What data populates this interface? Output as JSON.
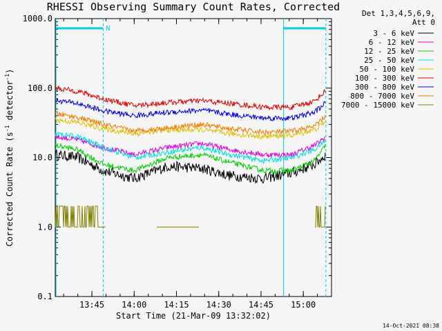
{
  "chart_data": {
    "type": "line",
    "title": "RHESSI Observing Summary Count Rates, Corrected",
    "xlabel": "Start Time (21-Mar-09 13:32:02)",
    "ylabel": "Corrected Count Rate (s⁻¹ detector⁻¹)",
    "ylabel_main": "Corrected Count Rate (s",
    "ylabel_mid": " detector",
    "ylabel_end": ")",
    "ylabel_sup": "-1",
    "yscale": "log",
    "ylim": [
      0.1,
      1000
    ],
    "xlim": [
      "13:32",
      "15:10"
    ],
    "y_ticks": [
      "1000.0",
      "100.0",
      "10.0",
      "1.0",
      "0.1"
    ],
    "x_ticks": [
      "13:45",
      "14:00",
      "14:15",
      "14:30",
      "14:45",
      "15:00"
    ],
    "detector_info": [
      "Det 1,3,4,5,6,9,",
      "Att 0"
    ],
    "flag_label": "N",
    "night_markers": [
      "13:32",
      "13:49",
      "14:53",
      "15:08"
    ],
    "series": [
      {
        "name": "3 - 6 keV",
        "color": "#000000",
        "keypoints": [
          [
            "13:32",
            11
          ],
          [
            "13:40",
            10
          ],
          [
            "13:49",
            6.5
          ],
          [
            "14:00",
            5
          ],
          [
            "14:12",
            7.5
          ],
          [
            "14:24",
            7
          ],
          [
            "14:34",
            5.5
          ],
          [
            "14:46",
            5
          ],
          [
            "14:56",
            6
          ],
          [
            "15:04",
            8
          ],
          [
            "15:08",
            11
          ]
        ]
      },
      {
        "name": "6 - 12 keV",
        "color": "#e000e0",
        "keypoints": [
          [
            "13:32",
            20
          ],
          [
            "13:40",
            18
          ],
          [
            "13:49",
            14
          ],
          [
            "14:00",
            11
          ],
          [
            "14:12",
            14
          ],
          [
            "14:24",
            16
          ],
          [
            "14:34",
            13
          ],
          [
            "14:46",
            11
          ],
          [
            "14:56",
            11
          ],
          [
            "15:04",
            15
          ],
          [
            "15:08",
            20
          ]
        ]
      },
      {
        "name": "12 - 25 keV",
        "color": "#00d000",
        "keypoints": [
          [
            "13:32",
            15
          ],
          [
            "13:40",
            13
          ],
          [
            "13:49",
            8
          ],
          [
            "14:00",
            6.5
          ],
          [
            "14:12",
            10
          ],
          [
            "14:24",
            11
          ],
          [
            "14:34",
            8.5
          ],
          [
            "14:46",
            6.5
          ],
          [
            "14:56",
            6.5
          ],
          [
            "15:04",
            9
          ],
          [
            "15:08",
            15
          ]
        ]
      },
      {
        "name": "25 - 50 keV",
        "color": "#00e0e0",
        "keypoints": [
          [
            "13:32",
            22
          ],
          [
            "13:40",
            20
          ],
          [
            "13:49",
            14
          ],
          [
            "14:00",
            10
          ],
          [
            "14:12",
            12
          ],
          [
            "14:24",
            14
          ],
          [
            "14:34",
            11
          ],
          [
            "14:46",
            9
          ],
          [
            "14:56",
            10
          ],
          [
            "15:04",
            13
          ],
          [
            "15:08",
            18
          ]
        ]
      },
      {
        "name": "50 - 100 keV",
        "color": "#e0c000",
        "keypoints": [
          [
            "13:32",
            35
          ],
          [
            "13:40",
            32
          ],
          [
            "13:49",
            26
          ],
          [
            "14:00",
            22
          ],
          [
            "14:12",
            25
          ],
          [
            "14:24",
            25
          ],
          [
            "14:34",
            22
          ],
          [
            "14:46",
            20
          ],
          [
            "14:56",
            21
          ],
          [
            "15:04",
            25
          ],
          [
            "15:08",
            33
          ]
        ]
      },
      {
        "name": "100 - 300 keV",
        "color": "#e00000",
        "keypoints": [
          [
            "13:32",
            100
          ],
          [
            "13:40",
            90
          ],
          [
            "13:49",
            70
          ],
          [
            "14:00",
            56
          ],
          [
            "14:12",
            62
          ],
          [
            "14:24",
            66
          ],
          [
            "14:34",
            60
          ],
          [
            "14:46",
            53
          ],
          [
            "14:56",
            53
          ],
          [
            "15:04",
            65
          ],
          [
            "15:08",
            92
          ]
        ]
      },
      {
        "name": "300 - 800 keV",
        "color": "#0000e0",
        "keypoints": [
          [
            "13:32",
            67
          ],
          [
            "13:40",
            60
          ],
          [
            "13:49",
            47
          ],
          [
            "14:00",
            40
          ],
          [
            "14:12",
            45
          ],
          [
            "14:24",
            48
          ],
          [
            "14:34",
            42
          ],
          [
            "14:46",
            37
          ],
          [
            "14:56",
            37
          ],
          [
            "15:04",
            45
          ],
          [
            "15:08",
            62
          ]
        ]
      },
      {
        "name": "800 - 7000 keV",
        "color": "#f08000",
        "keypoints": [
          [
            "13:32",
            43
          ],
          [
            "13:40",
            38
          ],
          [
            "13:49",
            30
          ],
          [
            "14:00",
            24
          ],
          [
            "14:12",
            27
          ],
          [
            "14:24",
            30
          ],
          [
            "14:34",
            26
          ],
          [
            "14:46",
            23
          ],
          [
            "14:56",
            24
          ],
          [
            "15:04",
            28
          ],
          [
            "15:08",
            40
          ]
        ]
      },
      {
        "name": "7000 - 15000 keV",
        "color": "#808000",
        "keypoints": [
          [
            "13:32",
            1.5
          ],
          [
            "13:40",
            1.5
          ],
          [
            "13:49",
            1.0
          ],
          [
            "14:00",
            null
          ],
          [
            "14:08",
            1.0
          ],
          [
            "14:22",
            1.0
          ],
          [
            "14:30",
            null
          ],
          [
            "15:04",
            1.0
          ],
          [
            "15:08",
            1.5
          ]
        ]
      }
    ],
    "legend_position": "right"
  },
  "footer_date": "14-Oct-2021 08:38"
}
